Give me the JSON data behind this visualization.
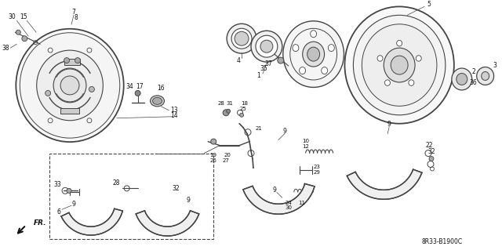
{
  "bg_color": "#ffffff",
  "line_color": "#444444",
  "text_color": "#111111",
  "diagram_code": "8R33-B1900C",
  "fr_label": "FR.",
  "fig_width": 6.4,
  "fig_height": 3.19,
  "dpi": 100
}
